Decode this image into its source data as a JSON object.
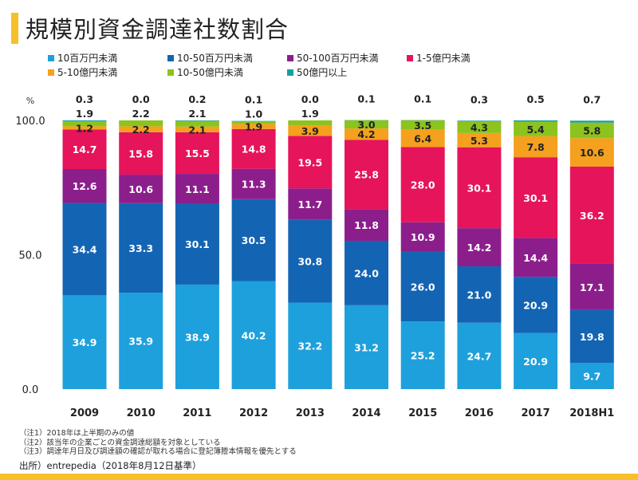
{
  "title": "規模別資金調達社数割合",
  "notes": [
    "（注1）2018年は上半期のみの値",
    "（注2）該当年の企業ごとの資金調達総額を対象としている",
    "（注3）調達年月日及び調達額の確認が取れる場合に登記簿謄本情報を優先とする"
  ],
  "source": "出所）entrepedia（2018年8月12日基準）",
  "chart_data": {
    "type": "bar",
    "stacked": true,
    "title": "規模別資金調達社数割合",
    "ylabel": "%",
    "ylim": [
      0,
      100
    ],
    "yticks": [
      "0.0",
      "50.0",
      "100.0"
    ],
    "grid": false,
    "legend_position": "top",
    "categories": [
      "2009",
      "2010",
      "2011",
      "2012",
      "2013",
      "2014",
      "2015",
      "2016",
      "2017",
      "2018H1"
    ],
    "series": [
      {
        "name": "10百万円未満",
        "color": "#1ea0dc",
        "values": [
          34.9,
          35.9,
          38.9,
          40.2,
          32.2,
          31.2,
          25.2,
          24.7,
          20.9,
          9.7
        ]
      },
      {
        "name": "10-50百万円未満",
        "color": "#1464b4",
        "values": [
          34.4,
          33.3,
          30.1,
          30.5,
          30.8,
          24.0,
          26.0,
          21.0,
          20.9,
          19.8
        ]
      },
      {
        "name": "50-100百万円未満",
        "color": "#8c1e8c",
        "values": [
          12.6,
          10.6,
          11.1,
          11.3,
          11.7,
          11.8,
          10.9,
          14.2,
          14.4,
          17.1
        ]
      },
      {
        "name": "1-5億円未満",
        "color": "#e6145a",
        "values": [
          14.7,
          15.8,
          15.5,
          14.8,
          19.5,
          25.8,
          28.0,
          30.1,
          30.1,
          36.2
        ]
      },
      {
        "name": "5-10億円未満",
        "color": "#f5a01e",
        "values": [
          1.2,
          2.2,
          2.1,
          1.9,
          3.9,
          4.2,
          6.4,
          5.3,
          7.8,
          10.6
        ]
      },
      {
        "name": "10-50億円未満",
        "color": "#8cc31e",
        "values": [
          1.9,
          2.2,
          2.1,
          1.0,
          1.9,
          3.0,
          3.5,
          4.3,
          5.4,
          5.8
        ]
      },
      {
        "name": "50億円以上",
        "color": "#14a0a0",
        "values": [
          0.3,
          0.0,
          0.2,
          0.1,
          0.0,
          0.1,
          0.1,
          0.3,
          0.5,
          0.7
        ]
      }
    ]
  }
}
